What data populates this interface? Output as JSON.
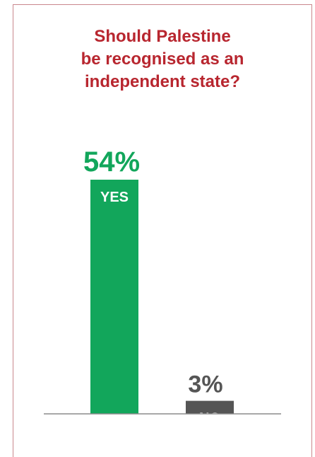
{
  "chart_data": {
    "type": "bar",
    "title_lines": [
      "Should Palestine",
      "be recognised as an",
      "independent state?"
    ],
    "categories": [
      "YES",
      "NO"
    ],
    "values": [
      54,
      3
    ],
    "value_labels": [
      "54%",
      "3%"
    ],
    "ylim": [
      0,
      54
    ],
    "grid": false,
    "colors": {
      "bars": [
        "#12a65b",
        "#555555"
      ],
      "value_labels": [
        "#12a65b",
        "#555555"
      ],
      "title": "#b8262f",
      "baseline": "#8c8c8c",
      "category_labels": "#ffffff"
    }
  }
}
